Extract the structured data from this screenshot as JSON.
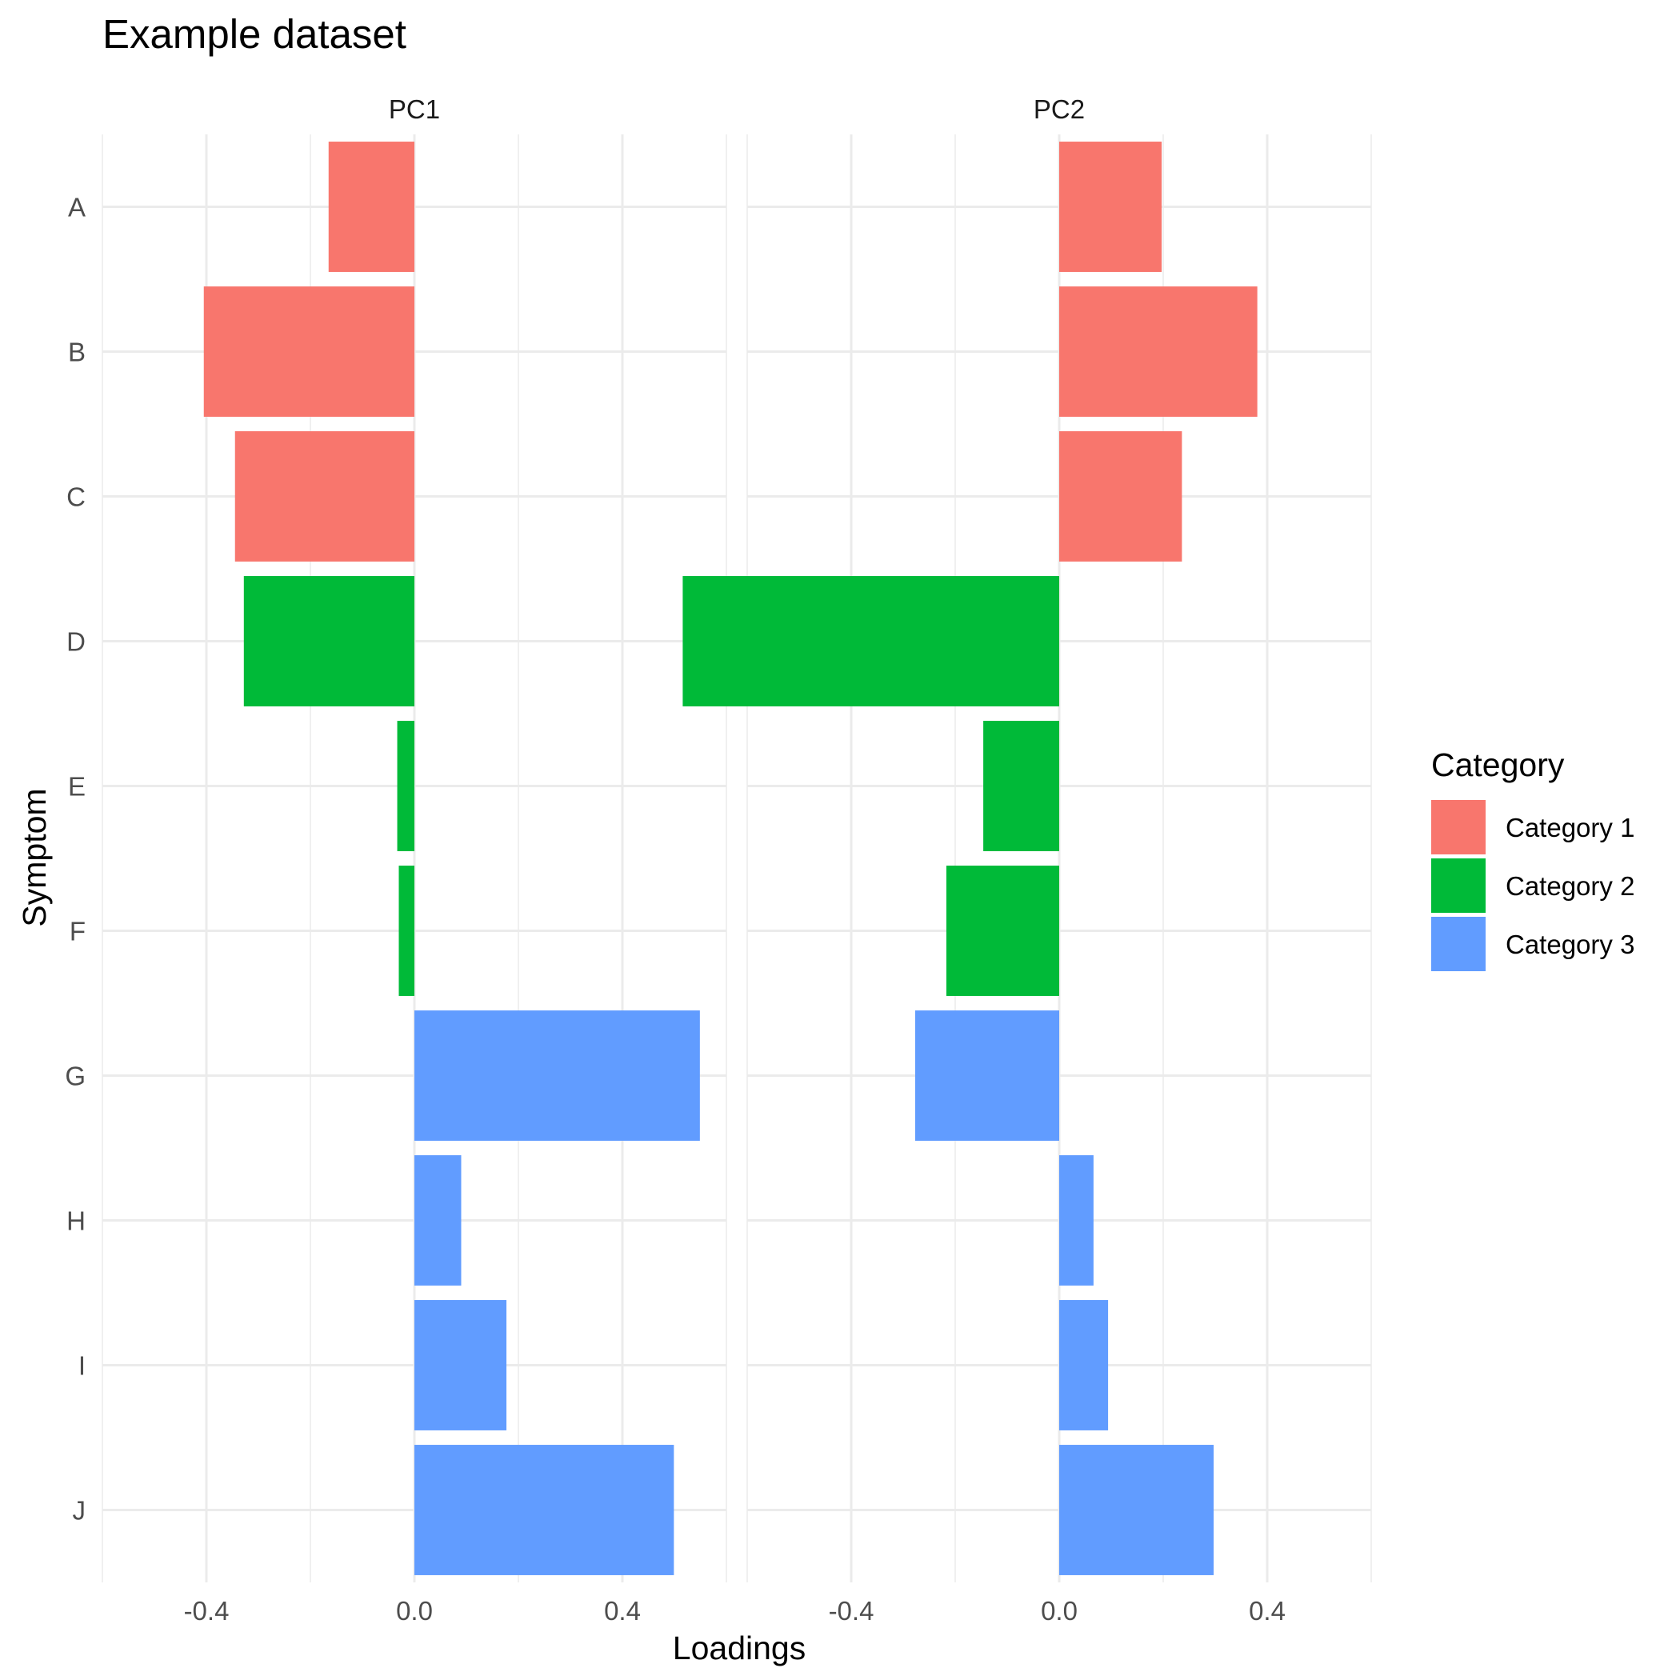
{
  "chart_data": {
    "type": "bar",
    "orientation": "horizontal",
    "title": "Example dataset",
    "xlabel": "Loadings",
    "ylabel": "Symptom",
    "xlim": [
      -0.6,
      0.6
    ],
    "x_ticks": [
      -0.4,
      0.0,
      0.4
    ],
    "x_tick_labels": [
      "-0.4",
      "0.0",
      "0.4"
    ],
    "grid": true,
    "facets": [
      "PC1",
      "PC2"
    ],
    "categories": [
      "A",
      "B",
      "C",
      "D",
      "E",
      "F",
      "G",
      "H",
      "I",
      "J"
    ],
    "bar_category": [
      "Category 1",
      "Category 1",
      "Category 1",
      "Category 2",
      "Category 2",
      "Category 2",
      "Category 3",
      "Category 3",
      "Category 3",
      "Category 3"
    ],
    "series": [
      {
        "facet": "PC1",
        "values": [
          -0.165,
          -0.405,
          -0.345,
          -0.328,
          -0.033,
          -0.03,
          0.549,
          0.09,
          0.177,
          0.499
        ]
      },
      {
        "facet": "PC2",
        "values": [
          0.197,
          0.381,
          0.236,
          -0.724,
          -0.146,
          -0.217,
          -0.277,
          0.066,
          0.094,
          0.297
        ]
      }
    ],
    "legend": {
      "title": "Category",
      "position": "right",
      "entries": [
        {
          "label": "Category 1",
          "color": "#F8766D"
        },
        {
          "label": "Category 2",
          "color": "#00BA38"
        },
        {
          "label": "Category 3",
          "color": "#619CFF"
        }
      ]
    }
  }
}
